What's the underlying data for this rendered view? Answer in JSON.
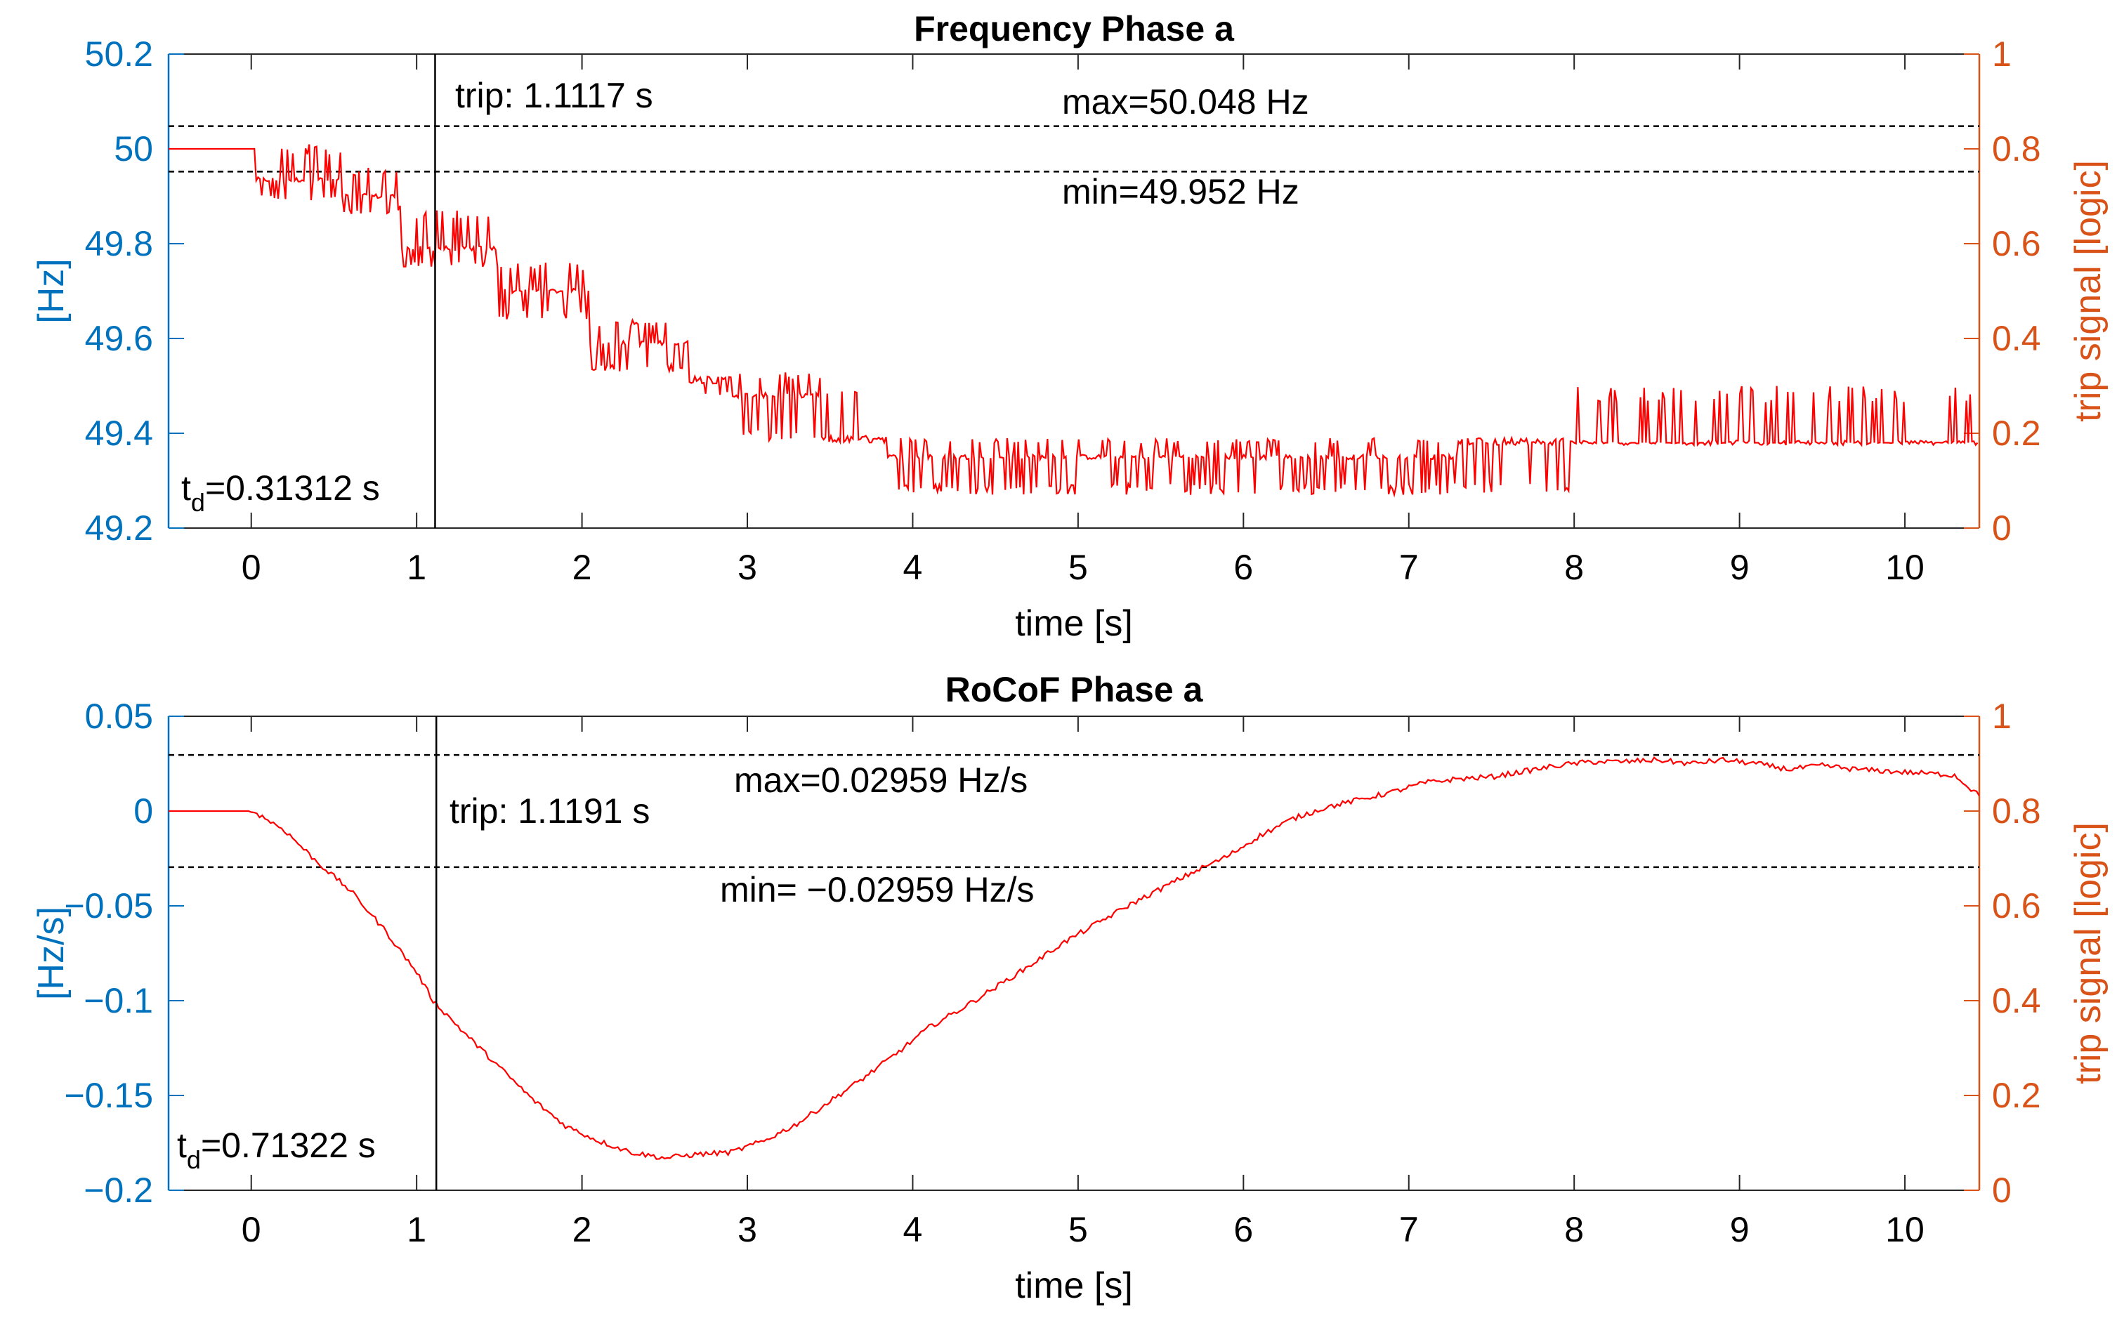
{
  "colors": {
    "left_axis": "#0072BD",
    "right_axis": "#D95319",
    "signal": "#FF0000",
    "threshold": "#000000",
    "trip_line": "#000000"
  },
  "chart_data": [
    {
      "type": "line",
      "title": "Frequency Phase a",
      "xlabel": "time [s]",
      "ylabel": "[Hz]",
      "ylabel_right": "trip signal [logic]",
      "xlim": [
        -0.5,
        10.45
      ],
      "ylim": [
        49.2,
        50.2
      ],
      "ylim_right": [
        0,
        1
      ],
      "x_ticks": [
        0,
        1,
        2,
        3,
        4,
        5,
        6,
        7,
        8,
        9,
        10
      ],
      "x_tick_labels": [
        "0",
        "1",
        "2",
        "3",
        "4",
        "5",
        "6",
        "7",
        "8",
        "9",
        "10"
      ],
      "y_ticks": [
        49.2,
        49.4,
        49.6,
        49.8,
        50,
        50.2
      ],
      "y_tick_labels": [
        "49.2",
        "49.4",
        "49.6",
        "49.8",
        "50",
        "50.2"
      ],
      "y_ticks_right": [
        0,
        0.2,
        0.4,
        0.6,
        0.8,
        1
      ],
      "y_tick_labels_right": [
        "0",
        "0.2",
        "0.4",
        "0.6",
        "0.8",
        "1"
      ],
      "threshold_max": 50.048,
      "threshold_min": 49.952,
      "max_label": "max=50.048 Hz",
      "min_label": "min=49.952 Hz",
      "trip_time": 1.1117,
      "trip_label": "trip: 1.1117 s",
      "td_prefix": "t",
      "td_sub": "d",
      "td_value": "=0.31312 s",
      "series": [
        {
          "name": "frequency",
          "style": "stepped-noisy",
          "segments": [
            {
              "t0": -0.5,
              "t1": 0.03,
              "base": 50.0,
              "low": 50.0,
              "high": 50.0
            },
            {
              "t0": 0.03,
              "t1": 0.55,
              "base": 49.935,
              "low": 49.89,
              "high": 50.01
            },
            {
              "t0": 0.55,
              "t1": 0.9,
              "base": 49.9,
              "low": 49.86,
              "high": 49.96
            },
            {
              "t0": 0.9,
              "t1": 1.5,
              "base": 49.79,
              "low": 49.75,
              "high": 49.88
            },
            {
              "t0": 1.5,
              "t1": 2.05,
              "base": 49.7,
              "low": 49.64,
              "high": 49.76
            },
            {
              "t0": 2.05,
              "t1": 2.65,
              "base": 49.59,
              "low": 49.53,
              "high": 49.64
            },
            {
              "t0": 2.65,
              "t1": 2.9,
              "base": 49.51,
              "low": 49.48,
              "high": 49.52
            },
            {
              "t0": 2.9,
              "t1": 3.45,
              "base": 49.48,
              "low": 49.38,
              "high": 49.53
            },
            {
              "t0": 3.45,
              "t1": 3.85,
              "base": 49.39,
              "low": 49.38,
              "high": 49.5
            },
            {
              "t0": 3.85,
              "t1": 7.3,
              "base": 49.35,
              "low": 49.27,
              "high": 49.39
            },
            {
              "t0": 7.3,
              "t1": 8.0,
              "base": 49.38,
              "low": 49.27,
              "high": 49.39
            },
            {
              "t0": 8.0,
              "t1": 10.45,
              "base": 49.38,
              "low": 49.38,
              "high": 49.5
            }
          ]
        }
      ]
    },
    {
      "type": "line",
      "title": "RoCoF Phase a",
      "xlabel": "time [s]",
      "ylabel": "[Hz/s]",
      "ylabel_right": "trip signal [logic]",
      "xlim": [
        -0.5,
        10.45
      ],
      "ylim": [
        -0.2,
        0.05
      ],
      "ylim_right": [
        0,
        1
      ],
      "x_ticks": [
        0,
        1,
        2,
        3,
        4,
        5,
        6,
        7,
        8,
        9,
        10
      ],
      "x_tick_labels": [
        "0",
        "1",
        "2",
        "3",
        "4",
        "5",
        "6",
        "7",
        "8",
        "9",
        "10"
      ],
      "y_ticks": [
        -0.2,
        -0.15,
        -0.1,
        -0.05,
        0,
        0.05
      ],
      "y_tick_labels": [
        "−0.2",
        "−0.15",
        "−0.1",
        "−0.05",
        "0",
        "0.05"
      ],
      "y_ticks_right": [
        0,
        0.2,
        0.4,
        0.6,
        0.8,
        1
      ],
      "y_tick_labels_right": [
        "0",
        "0.2",
        "0.4",
        "0.6",
        "0.8",
        "1"
      ],
      "threshold_max": 0.02959,
      "threshold_min": -0.02959,
      "max_label": "max=0.02959 Hz/s",
      "min_label": "min= −0.02959 Hz/s",
      "trip_time": 1.1191,
      "trip_label": "trip: 1.1191 s",
      "td_prefix": "t",
      "td_sub": "d",
      "td_value": "=0.71322 s",
      "series": [
        {
          "name": "rocof",
          "style": "smooth-noisy",
          "x": [
            -0.5,
            0.0,
            0.05,
            0.2,
            0.4,
            0.6,
            0.8,
            1.0,
            1.1,
            1.3,
            1.5,
            1.7,
            1.9,
            2.1,
            2.3,
            2.5,
            2.7,
            2.9,
            3.1,
            3.3,
            3.5,
            3.7,
            3.9,
            4.1,
            4.3,
            4.5,
            4.7,
            4.9,
            5.1,
            5.3,
            5.5,
            5.7,
            5.9,
            6.1,
            6.3,
            6.5,
            6.7,
            6.9,
            7.1,
            7.3,
            7.5,
            7.7,
            7.9,
            8.1,
            8.3,
            8.5,
            8.7,
            8.9,
            9.1,
            9.3,
            9.5,
            9.7,
            9.9,
            10.1,
            10.3,
            10.45
          ],
          "values": [
            0.0,
            0.0,
            -0.002,
            -0.01,
            -0.027,
            -0.042,
            -0.062,
            -0.085,
            -0.1,
            -0.118,
            -0.135,
            -0.152,
            -0.166,
            -0.174,
            -0.18,
            -0.183,
            -0.181,
            -0.18,
            -0.174,
            -0.165,
            -0.153,
            -0.141,
            -0.128,
            -0.114,
            -0.104,
            -0.093,
            -0.082,
            -0.07,
            -0.06,
            -0.05,
            -0.041,
            -0.032,
            -0.024,
            -0.013,
            -0.004,
            0.002,
            0.006,
            0.01,
            0.015,
            0.017,
            0.018,
            0.021,
            0.024,
            0.026,
            0.026,
            0.027,
            0.025,
            0.027,
            0.025,
            0.022,
            0.024,
            0.022,
            0.021,
            0.02,
            0.019,
            0.008
          ]
        }
      ]
    }
  ]
}
